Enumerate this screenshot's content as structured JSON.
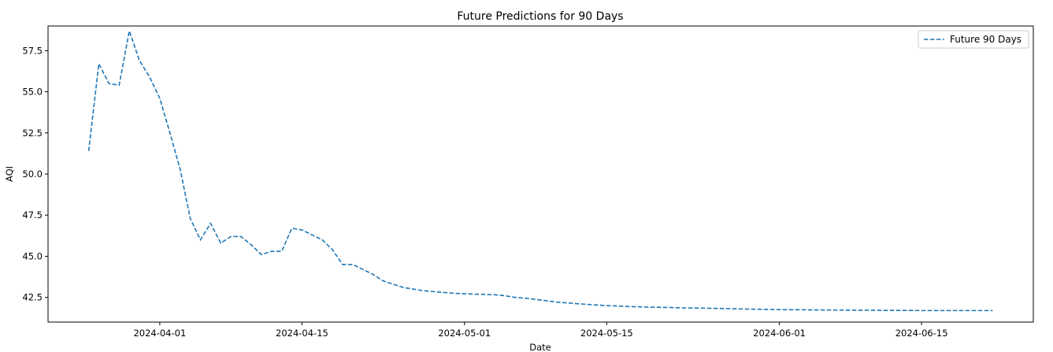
{
  "chart_data": {
    "type": "line",
    "title": "Future Predictions for 90 Days",
    "xlabel": "Date",
    "ylabel": "AQI",
    "xlim": [
      "2024-03-21",
      "2024-06-26"
    ],
    "ylim": [
      41.0,
      59.0
    ],
    "grid": false,
    "legend_position": "top-right",
    "x_ticks": [
      "2024-04-01",
      "2024-04-15",
      "2024-05-01",
      "2024-05-15",
      "2024-06-01",
      "2024-06-15"
    ],
    "y_ticks": [
      "42.5",
      "45.0",
      "47.5",
      "50.0",
      "52.5",
      "55.0",
      "57.5"
    ],
    "series": [
      {
        "name": "Future 90 Days",
        "color": "#1f77b4",
        "line_style": "dashed",
        "x": [
          "2024-03-25",
          "2024-03-26",
          "2024-03-27",
          "2024-03-28",
          "2024-03-29",
          "2024-03-30",
          "2024-03-31",
          "2024-04-01",
          "2024-04-02",
          "2024-04-03",
          "2024-04-04",
          "2024-04-05",
          "2024-04-06",
          "2024-04-07",
          "2024-04-08",
          "2024-04-09",
          "2024-04-10",
          "2024-04-11",
          "2024-04-12",
          "2024-04-13",
          "2024-04-14",
          "2024-04-15",
          "2024-04-16",
          "2024-04-17",
          "2024-04-18",
          "2024-04-19",
          "2024-04-20",
          "2024-04-21",
          "2024-04-22",
          "2024-04-23",
          "2024-04-24",
          "2024-04-25",
          "2024-04-26",
          "2024-04-27",
          "2024-04-28",
          "2024-04-29",
          "2024-04-30",
          "2024-05-01",
          "2024-05-02",
          "2024-05-03",
          "2024-05-04",
          "2024-05-05",
          "2024-05-06",
          "2024-05-07",
          "2024-05-08",
          "2024-05-09",
          "2024-05-10",
          "2024-05-11",
          "2024-05-12",
          "2024-05-13",
          "2024-05-14",
          "2024-05-15",
          "2024-05-16",
          "2024-05-17",
          "2024-05-18",
          "2024-05-19",
          "2024-05-20",
          "2024-05-21",
          "2024-05-22",
          "2024-05-23",
          "2024-05-24",
          "2024-05-25",
          "2024-05-26",
          "2024-05-27",
          "2024-05-28",
          "2024-05-29",
          "2024-05-30",
          "2024-05-31",
          "2024-06-01",
          "2024-06-02",
          "2024-06-03",
          "2024-06-04",
          "2024-06-05",
          "2024-06-06",
          "2024-06-07",
          "2024-06-08",
          "2024-06-09",
          "2024-06-10",
          "2024-06-11",
          "2024-06-12",
          "2024-06-13",
          "2024-06-14",
          "2024-06-15",
          "2024-06-16",
          "2024-06-17",
          "2024-06-18",
          "2024-06-19",
          "2024-06-20",
          "2024-06-21",
          "2024-06-22"
        ],
        "values": [
          51.4,
          56.7,
          55.5,
          55.4,
          58.7,
          56.9,
          55.9,
          54.6,
          52.5,
          50.3,
          47.3,
          46.0,
          47.0,
          45.8,
          46.2,
          46.2,
          45.7,
          45.1,
          45.3,
          45.3,
          46.7,
          46.6,
          46.3,
          46.0,
          45.4,
          44.5,
          44.5,
          44.2,
          43.9,
          43.5,
          43.3,
          43.1,
          43.0,
          42.9,
          42.85,
          42.8,
          42.75,
          42.72,
          42.7,
          42.68,
          42.66,
          42.6,
          42.5,
          42.45,
          42.38,
          42.3,
          42.22,
          42.17,
          42.12,
          42.08,
          42.04,
          42.0,
          41.98,
          41.95,
          41.93,
          41.91,
          41.9,
          41.89,
          41.87,
          41.86,
          41.85,
          41.84,
          41.83,
          41.82,
          41.8,
          41.79,
          41.78,
          41.77,
          41.76,
          41.75,
          41.75,
          41.74,
          41.74,
          41.73,
          41.73,
          41.72,
          41.72,
          41.72,
          41.71,
          41.71,
          41.71,
          41.71,
          41.7,
          41.7,
          41.7,
          41.7,
          41.7,
          41.7,
          41.7,
          41.7
        ]
      }
    ]
  }
}
